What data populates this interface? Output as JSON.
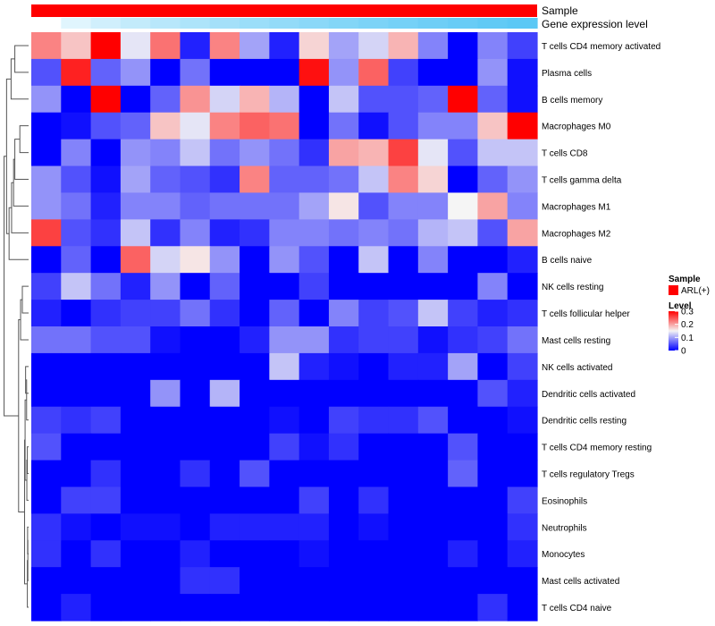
{
  "chart_data": {
    "type": "heatmap",
    "title": "",
    "annotations": [
      {
        "name": "Sample",
        "type": "constant",
        "color": "#ff0000"
      },
      {
        "name": "Gene expression level",
        "type": "gradient",
        "low": "#ffffff",
        "high": "#5bc8f5"
      }
    ],
    "legend": {
      "placement": "right",
      "sample_title": "Sample",
      "sample_label": "ARL(+)",
      "sample_color": "#ff0000",
      "level_title": "Level",
      "level_ticks": [
        "0.3",
        "0.2",
        "0.1",
        "0"
      ],
      "level_tick_values": [
        0.3,
        0.2,
        0.1,
        0
      ],
      "range": [
        0,
        0.3
      ],
      "colors": {
        "low": "#0000ff",
        "mid": "#f5f5f5",
        "high": "#ff0000"
      }
    },
    "rows": [
      "T cells CD4 memory activated",
      "Plasma cells",
      "B cells memory",
      "Macrophages M0",
      "T cells CD8",
      "T cells gamma delta",
      "Macrophages M1",
      "Macrophages M2",
      "B cells naive",
      "NK cells resting",
      "T cells follicular helper",
      "Mast cells resting",
      "NK cells activated",
      "Dendritic cells activated",
      "Dendritic cells resting",
      "T cells CD4 memory resting",
      "T cells regulatory  Tregs",
      "Eosinophils",
      "Neutrophils",
      "Monocytes",
      "Mast cells activated",
      "T cells CD4 naive"
    ],
    "values": [
      [
        0.22,
        0.18,
        0.3,
        0.14,
        0.23,
        0.02,
        0.22,
        0.1,
        0.02,
        0.17,
        0.1,
        0.13,
        0.19,
        0.08,
        0.0,
        0.08,
        0.04
      ],
      [
        0.05,
        0.28,
        0.06,
        0.09,
        0.0,
        0.07,
        0.0,
        0.0,
        0.0,
        0.29,
        0.09,
        0.24,
        0.04,
        0.0,
        0.0,
        0.09,
        0.01
      ],
      [
        0.09,
        0.0,
        0.3,
        0.0,
        0.06,
        0.21,
        0.13,
        0.19,
        0.11,
        0.0,
        0.12,
        0.05,
        0.05,
        0.06,
        0.3,
        0.06,
        0.01
      ],
      [
        0.0,
        0.01,
        0.05,
        0.06,
        0.18,
        0.14,
        0.22,
        0.24,
        0.23,
        0.0,
        0.07,
        0.01,
        0.05,
        0.08,
        0.08,
        0.18,
        0.3
      ],
      [
        0.0,
        0.08,
        0.0,
        0.09,
        0.08,
        0.12,
        0.07,
        0.09,
        0.07,
        0.03,
        0.2,
        0.19,
        0.26,
        0.14,
        0.05,
        0.12,
        0.12
      ],
      [
        0.09,
        0.05,
        0.01,
        0.1,
        0.06,
        0.05,
        0.03,
        0.22,
        0.06,
        0.06,
        0.07,
        0.12,
        0.22,
        0.17,
        0.0,
        0.06,
        0.09
      ],
      [
        0.09,
        0.07,
        0.02,
        0.08,
        0.08,
        0.06,
        0.07,
        0.07,
        0.07,
        0.1,
        0.16,
        0.05,
        0.08,
        0.08,
        0.15,
        0.2,
        0.08
      ],
      [
        0.26,
        0.05,
        0.03,
        0.12,
        0.03,
        0.08,
        0.02,
        0.03,
        0.08,
        0.08,
        0.07,
        0.08,
        0.07,
        0.11,
        0.12,
        0.05,
        0.2
      ],
      [
        0.0,
        0.06,
        0.0,
        0.24,
        0.13,
        0.16,
        0.09,
        0.0,
        0.09,
        0.05,
        0.0,
        0.12,
        0.0,
        0.08,
        0.0,
        0.0,
        0.02
      ],
      [
        0.04,
        0.12,
        0.07,
        0.02,
        0.09,
        0.0,
        0.06,
        0.0,
        0.0,
        0.04,
        0.0,
        0.0,
        0.0,
        0.0,
        0.0,
        0.08,
        0.0
      ],
      [
        0.02,
        0.0,
        0.03,
        0.04,
        0.04,
        0.07,
        0.03,
        0.0,
        0.06,
        0.0,
        0.08,
        0.04,
        0.05,
        0.12,
        0.04,
        0.02,
        0.03
      ],
      [
        0.07,
        0.07,
        0.05,
        0.05,
        0.01,
        0.0,
        0.0,
        0.02,
        0.09,
        0.09,
        0.03,
        0.04,
        0.04,
        0.01,
        0.03,
        0.04,
        0.07
      ],
      [
        0.0,
        0.0,
        0.0,
        0.0,
        0.0,
        0.0,
        0.0,
        0.0,
        0.12,
        0.02,
        0.01,
        0.0,
        0.02,
        0.02,
        0.1,
        0.0,
        0.04
      ],
      [
        0.0,
        0.0,
        0.0,
        0.0,
        0.09,
        0.0,
        0.11,
        0.0,
        0.0,
        0.0,
        0.0,
        0.0,
        0.0,
        0.0,
        0.0,
        0.05,
        0.02
      ],
      [
        0.04,
        0.03,
        0.04,
        0.0,
        0.0,
        0.0,
        0.0,
        0.0,
        0.01,
        0.0,
        0.04,
        0.03,
        0.03,
        0.05,
        0.0,
        0.0,
        0.01
      ],
      [
        0.05,
        0.0,
        0.0,
        0.0,
        0.0,
        0.0,
        0.0,
        0.0,
        0.04,
        0.01,
        0.03,
        0.0,
        0.0,
        0.0,
        0.05,
        0.0,
        0.0
      ],
      [
        0.0,
        0.0,
        0.03,
        0.0,
        0.0,
        0.03,
        0.0,
        0.05,
        0.0,
        0.0,
        0.0,
        0.0,
        0.0,
        0.0,
        0.06,
        0.0,
        0.0
      ],
      [
        0.0,
        0.04,
        0.04,
        0.0,
        0.0,
        0.0,
        0.0,
        0.0,
        0.0,
        0.04,
        0.0,
        0.03,
        0.0,
        0.0,
        0.0,
        0.0,
        0.04
      ],
      [
        0.03,
        0.01,
        0.0,
        0.01,
        0.01,
        0.0,
        0.02,
        0.02,
        0.02,
        0.02,
        0.0,
        0.01,
        0.0,
        0.0,
        0.0,
        0.0,
        0.03
      ],
      [
        0.03,
        0.0,
        0.03,
        0.0,
        0.0,
        0.02,
        0.0,
        0.0,
        0.0,
        0.01,
        0.0,
        0.0,
        0.0,
        0.0,
        0.02,
        0.0,
        0.02
      ],
      [
        0.0,
        0.0,
        0.0,
        0.0,
        0.0,
        0.03,
        0.03,
        0.0,
        0.0,
        0.0,
        0.0,
        0.0,
        0.0,
        0.0,
        0.0,
        0.0,
        0.0
      ],
      [
        0.0,
        0.02,
        0.0,
        0.0,
        0.0,
        0.0,
        0.0,
        0.0,
        0.0,
        0.0,
        0.0,
        0.0,
        0.0,
        0.0,
        0.0,
        0.03,
        0.0
      ]
    ]
  }
}
